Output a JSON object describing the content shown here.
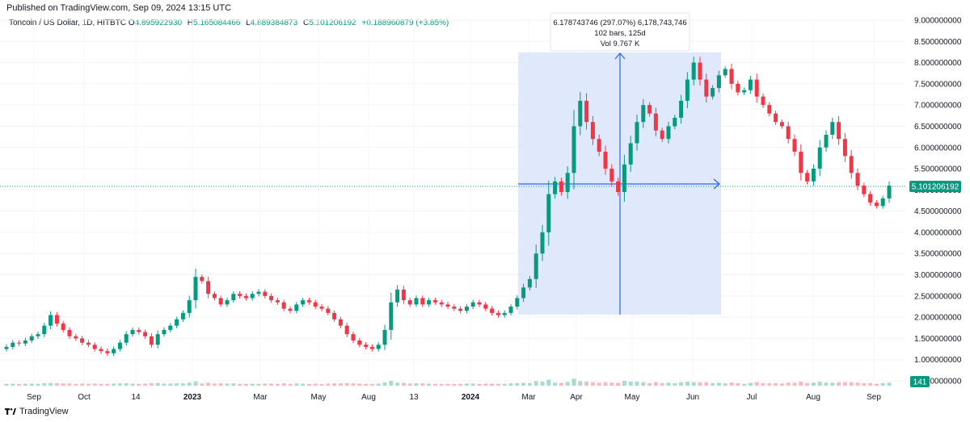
{
  "header": {
    "published": "Published on TradingView.com, Sep 09, 2024 13:15 UTC",
    "symbol": "Toncoin / US Dollar, 1D, HITBTC",
    "o_label": "O",
    "o_value": "4.895922930",
    "h_label": "H",
    "h_value": "5.165084466",
    "l_label": "L",
    "l_value": "4.889384873",
    "c_label": "C",
    "c_value": "5.101206192",
    "change": "+0.188960879 (+3.85%)"
  },
  "measure": {
    "line1": "6.178743746 (297.07%) 6,178,743,746",
    "line2": "102 bars, 125d",
    "line3": "Vol 9.767 K"
  },
  "price_label": "5.101206192",
  "volume_label": "141",
  "branding": "TradingView",
  "colors": {
    "up": "#089981",
    "down": "#f23645",
    "measure_fill": "#dbe4fc",
    "measure_line": "#2962ff",
    "axis_text": "#131722"
  },
  "chart_data": {
    "type": "candlestick",
    "title": "Toncoin / US Dollar, 1D, HITBTC",
    "y_ticks": [
      "9.000000000",
      "8.500000000",
      "8.000000000",
      "7.500000000",
      "7.000000000",
      "6.500000000",
      "6.000000000",
      "5.500000000",
      "5.000000000",
      "4.500000000",
      "4.000000000",
      "3.500000000",
      "3.000000000",
      "2.500000000",
      "2.000000000",
      "1.500000000",
      "1.000000000",
      "0.500000000"
    ],
    "ylim": [
      0.5,
      9.0
    ],
    "x_ticks": [
      "Sep",
      "Oct",
      "14",
      "2023",
      "Mar",
      "May",
      "Aug",
      "13",
      "2024",
      "Mar",
      "Apr",
      "May",
      "Jun",
      "Jul",
      "Aug",
      "Sep"
    ],
    "last_close": 5.101206192,
    "measure": {
      "from": 2.08,
      "to": 8.26,
      "change": 6.178743746,
      "bars": 102,
      "days": 125
    },
    "closes": [
      1.3,
      1.4,
      1.38,
      1.45,
      1.55,
      1.6,
      1.8,
      2.05,
      1.85,
      1.7,
      1.55,
      1.5,
      1.4,
      1.35,
      1.25,
      1.2,
      1.15,
      1.25,
      1.4,
      1.6,
      1.7,
      1.65,
      1.55,
      1.35,
      1.6,
      1.7,
      1.8,
      1.95,
      2.1,
      2.4,
      2.95,
      2.85,
      2.55,
      2.45,
      2.3,
      2.4,
      2.55,
      2.5,
      2.45,
      2.55,
      2.6,
      2.5,
      2.4,
      2.35,
      2.2,
      2.15,
      2.3,
      2.4,
      2.35,
      2.25,
      2.2,
      2.1,
      1.95,
      1.8,
      1.6,
      1.45,
      1.35,
      1.3,
      1.25,
      1.35,
      1.7,
      2.35,
      2.65,
      2.4,
      2.3,
      2.45,
      2.3,
      2.4,
      2.35,
      2.3,
      2.25,
      2.2,
      2.15,
      2.25,
      2.35,
      2.3,
      2.2,
      2.1,
      2.05,
      2.1,
      2.25,
      2.45,
      2.7,
      2.9,
      3.5,
      4.0,
      4.9,
      5.2,
      4.95,
      5.4,
      6.5,
      7.1,
      6.6,
      6.2,
      5.9,
      5.5,
      5.2,
      4.95,
      5.6,
      6.1,
      6.6,
      7.0,
      6.8,
      6.4,
      6.2,
      6.5,
      6.7,
      7.1,
      7.6,
      8.0,
      7.6,
      7.2,
      7.4,
      7.7,
      7.85,
      7.5,
      7.3,
      7.35,
      7.6,
      7.2,
      7.0,
      6.8,
      6.6,
      6.5,
      6.2,
      5.9,
      5.4,
      5.2,
      5.5,
      6.0,
      6.3,
      6.6,
      6.2,
      5.8,
      5.4,
      5.1,
      4.9,
      4.7,
      4.62,
      4.8,
      5.1
    ]
  }
}
